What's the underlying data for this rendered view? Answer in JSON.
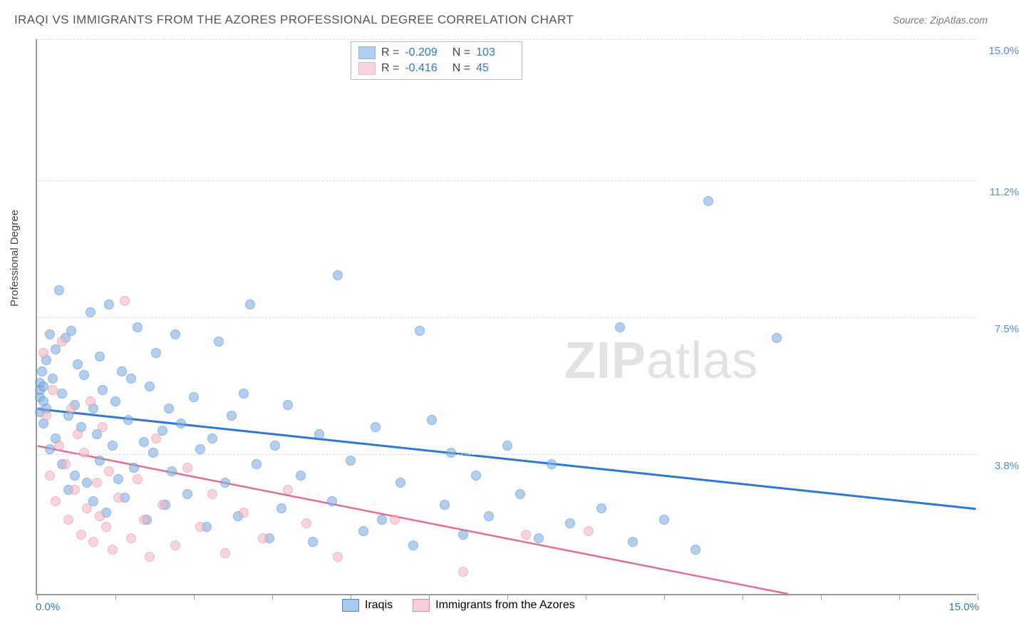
{
  "title": "IRAQI VS IMMIGRANTS FROM THE AZORES PROFESSIONAL DEGREE CORRELATION CHART",
  "source": "Source: ZipAtlas.com",
  "watermark": {
    "bold": "ZIP",
    "rest": "atlas"
  },
  "y_axis_title": "Professional Degree",
  "chart": {
    "type": "scatter",
    "background_color": "#ffffff",
    "grid_color": "#dddddd",
    "axis_color": "#999999",
    "xlim": [
      0,
      15
    ],
    "ylim": [
      0,
      15
    ],
    "x_ticks": [
      0,
      1.25,
      2.5,
      3.75,
      5,
      6.25,
      7.5,
      8.75,
      10,
      11.25,
      12.5,
      13.75,
      15
    ],
    "x_tick_labels": {
      "0": "0.0%",
      "15": "15.0%"
    },
    "x_label_color_left": "#2f78d0",
    "x_label_color_right": "#2f78d0",
    "y_gridlines": [
      3.8,
      7.5,
      11.2,
      15.0
    ],
    "y_tick_labels": [
      "3.8%",
      "7.5%",
      "11.2%",
      "15.0%"
    ],
    "y_label_color": "#5a8bd6",
    "marker_radius": 7,
    "marker_border_width": 1.2,
    "marker_fill_opacity": 0.35,
    "series": [
      {
        "name": "Iraqis",
        "color": "#7fb0e6",
        "border_color": "#4b86c9",
        "R": "-0.209",
        "N": "103",
        "trend": {
          "y_at_x0": 5.0,
          "y_at_xmax": 2.3,
          "stroke": "#2f78d0",
          "width": 3
        },
        "points": [
          [
            0.05,
            5.3
          ],
          [
            0.05,
            5.7
          ],
          [
            0.05,
            5.5
          ],
          [
            0.05,
            4.9
          ],
          [
            0.08,
            6.0
          ],
          [
            0.1,
            5.2
          ],
          [
            0.1,
            5.6
          ],
          [
            0.1,
            4.6
          ],
          [
            0.15,
            6.3
          ],
          [
            0.15,
            5.0
          ],
          [
            0.2,
            7.0
          ],
          [
            0.2,
            3.9
          ],
          [
            0.25,
            5.8
          ],
          [
            0.3,
            6.6
          ],
          [
            0.3,
            4.2
          ],
          [
            0.35,
            8.2
          ],
          [
            0.4,
            5.4
          ],
          [
            0.4,
            3.5
          ],
          [
            0.45,
            6.9
          ],
          [
            0.5,
            4.8
          ],
          [
            0.5,
            2.8
          ],
          [
            0.55,
            7.1
          ],
          [
            0.6,
            5.1
          ],
          [
            0.6,
            3.2
          ],
          [
            0.65,
            6.2
          ],
          [
            0.7,
            4.5
          ],
          [
            0.75,
            5.9
          ],
          [
            0.8,
            3.0
          ],
          [
            0.85,
            7.6
          ],
          [
            0.9,
            5.0
          ],
          [
            0.9,
            2.5
          ],
          [
            0.95,
            4.3
          ],
          [
            1.0,
            6.4
          ],
          [
            1.0,
            3.6
          ],
          [
            1.05,
            5.5
          ],
          [
            1.1,
            2.2
          ],
          [
            1.15,
            7.8
          ],
          [
            1.2,
            4.0
          ],
          [
            1.25,
            5.2
          ],
          [
            1.3,
            3.1
          ],
          [
            1.35,
            6.0
          ],
          [
            1.4,
            2.6
          ],
          [
            1.45,
            4.7
          ],
          [
            1.5,
            5.8
          ],
          [
            1.55,
            3.4
          ],
          [
            1.6,
            7.2
          ],
          [
            1.7,
            4.1
          ],
          [
            1.75,
            2.0
          ],
          [
            1.8,
            5.6
          ],
          [
            1.85,
            3.8
          ],
          [
            1.9,
            6.5
          ],
          [
            2.0,
            4.4
          ],
          [
            2.05,
            2.4
          ],
          [
            2.1,
            5.0
          ],
          [
            2.15,
            3.3
          ],
          [
            2.2,
            7.0
          ],
          [
            2.3,
            4.6
          ],
          [
            2.4,
            2.7
          ],
          [
            2.5,
            5.3
          ],
          [
            2.6,
            3.9
          ],
          [
            2.7,
            1.8
          ],
          [
            2.8,
            4.2
          ],
          [
            2.9,
            6.8
          ],
          [
            3.0,
            3.0
          ],
          [
            3.1,
            4.8
          ],
          [
            3.2,
            2.1
          ],
          [
            3.3,
            5.4
          ],
          [
            3.4,
            7.8
          ],
          [
            3.5,
            3.5
          ],
          [
            3.7,
            1.5
          ],
          [
            3.8,
            4.0
          ],
          [
            3.9,
            2.3
          ],
          [
            4.0,
            5.1
          ],
          [
            4.2,
            3.2
          ],
          [
            4.4,
            1.4
          ],
          [
            4.5,
            4.3
          ],
          [
            4.7,
            2.5
          ],
          [
            4.8,
            8.6
          ],
          [
            5.0,
            3.6
          ],
          [
            5.2,
            1.7
          ],
          [
            5.4,
            4.5
          ],
          [
            5.5,
            2.0
          ],
          [
            5.8,
            3.0
          ],
          [
            6.0,
            1.3
          ],
          [
            6.1,
            7.1
          ],
          [
            6.3,
            4.7
          ],
          [
            6.5,
            2.4
          ],
          [
            6.6,
            3.8
          ],
          [
            6.8,
            1.6
          ],
          [
            7.0,
            3.2
          ],
          [
            7.2,
            2.1
          ],
          [
            7.5,
            4.0
          ],
          [
            7.7,
            2.7
          ],
          [
            8.0,
            1.5
          ],
          [
            8.2,
            3.5
          ],
          [
            8.5,
            1.9
          ],
          [
            9.0,
            2.3
          ],
          [
            9.3,
            7.2
          ],
          [
            9.5,
            1.4
          ],
          [
            10.0,
            2.0
          ],
          [
            10.5,
            1.2
          ],
          [
            10.7,
            10.6
          ],
          [
            11.8,
            6.9
          ]
        ]
      },
      {
        "name": "Immigrants from the Azores",
        "color": "#f4b7c6",
        "border_color": "#e08aa2",
        "R": "-0.416",
        "N": "45",
        "trend": {
          "y_at_x0": 4.0,
          "y_at_xmax": -1.0,
          "stroke": "#e26f8f",
          "width": 2.5
        },
        "points": [
          [
            0.1,
            6.5
          ],
          [
            0.15,
            4.8
          ],
          [
            0.2,
            3.2
          ],
          [
            0.25,
            5.5
          ],
          [
            0.3,
            2.5
          ],
          [
            0.35,
            4.0
          ],
          [
            0.4,
            6.8
          ],
          [
            0.45,
            3.5
          ],
          [
            0.5,
            2.0
          ],
          [
            0.55,
            5.0
          ],
          [
            0.6,
            2.8
          ],
          [
            0.65,
            4.3
          ],
          [
            0.7,
            1.6
          ],
          [
            0.75,
            3.8
          ],
          [
            0.8,
            2.3
          ],
          [
            0.85,
            5.2
          ],
          [
            0.9,
            1.4
          ],
          [
            0.95,
            3.0
          ],
          [
            1.0,
            2.1
          ],
          [
            1.05,
            4.5
          ],
          [
            1.1,
            1.8
          ],
          [
            1.15,
            3.3
          ],
          [
            1.2,
            1.2
          ],
          [
            1.3,
            2.6
          ],
          [
            1.4,
            7.9
          ],
          [
            1.5,
            1.5
          ],
          [
            1.6,
            3.1
          ],
          [
            1.7,
            2.0
          ],
          [
            1.8,
            1.0
          ],
          [
            1.9,
            4.2
          ],
          [
            2.0,
            2.4
          ],
          [
            2.2,
            1.3
          ],
          [
            2.4,
            3.4
          ],
          [
            2.6,
            1.8
          ],
          [
            2.8,
            2.7
          ],
          [
            3.0,
            1.1
          ],
          [
            3.3,
            2.2
          ],
          [
            3.6,
            1.5
          ],
          [
            4.0,
            2.8
          ],
          [
            4.3,
            1.9
          ],
          [
            4.8,
            1.0
          ],
          [
            5.7,
            2.0
          ],
          [
            6.8,
            0.6
          ],
          [
            7.8,
            1.6
          ],
          [
            8.8,
            1.7
          ]
        ]
      }
    ]
  },
  "legend_bottom": [
    {
      "label": "Iraqis",
      "fill": "#a9c9ed",
      "border": "#4b86c9"
    },
    {
      "label": "Immigrants from the Azores",
      "fill": "#f7cdd8",
      "border": "#e08aa2"
    }
  ]
}
